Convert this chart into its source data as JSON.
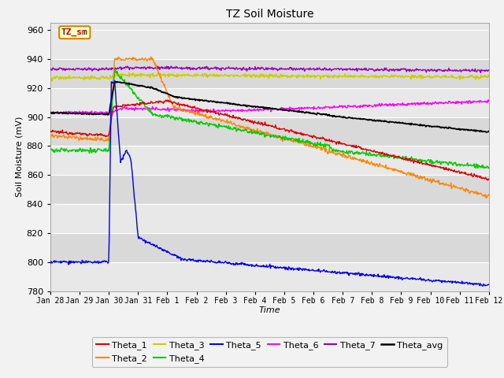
{
  "title": "TZ Soil Moisture",
  "xlabel": "Time",
  "ylabel": "Soil Moisture (mV)",
  "ylim": [
    780,
    965
  ],
  "yticks": [
    780,
    800,
    820,
    840,
    860,
    880,
    900,
    920,
    940,
    960
  ],
  "xtick_labels": [
    "Jan 28",
    "Jan 29",
    "Jan 30",
    "Jan 31",
    "Feb 1",
    "Feb 2",
    "Feb 3",
    "Feb 4",
    "Feb 5",
    "Feb 6",
    "Feb 7",
    "Feb 8",
    "Feb 9",
    "Feb 10",
    "Feb 11",
    "Feb 12"
  ],
  "legend_label": "TZ_sm",
  "legend_label_color": "#bb0000",
  "legend_box_color": "#ffffcc",
  "legend_box_edge": "#cc8800",
  "colors": {
    "Theta_1": "#dd0000",
    "Theta_2": "#ff8800",
    "Theta_3": "#cccc00",
    "Theta_4": "#00cc00",
    "Theta_5": "#0000ee",
    "Theta_6": "#ff00ff",
    "Theta_7": "#9900bb",
    "Theta_avg": "#000000"
  },
  "plot_bg_light": "#e8e8e8",
  "plot_bg_dark": "#d0d0d0",
  "grid_color": "#ffffff",
  "fig_bg": "#f2f2f2",
  "figsize": [
    6.4,
    4.8
  ],
  "dpi": 100
}
